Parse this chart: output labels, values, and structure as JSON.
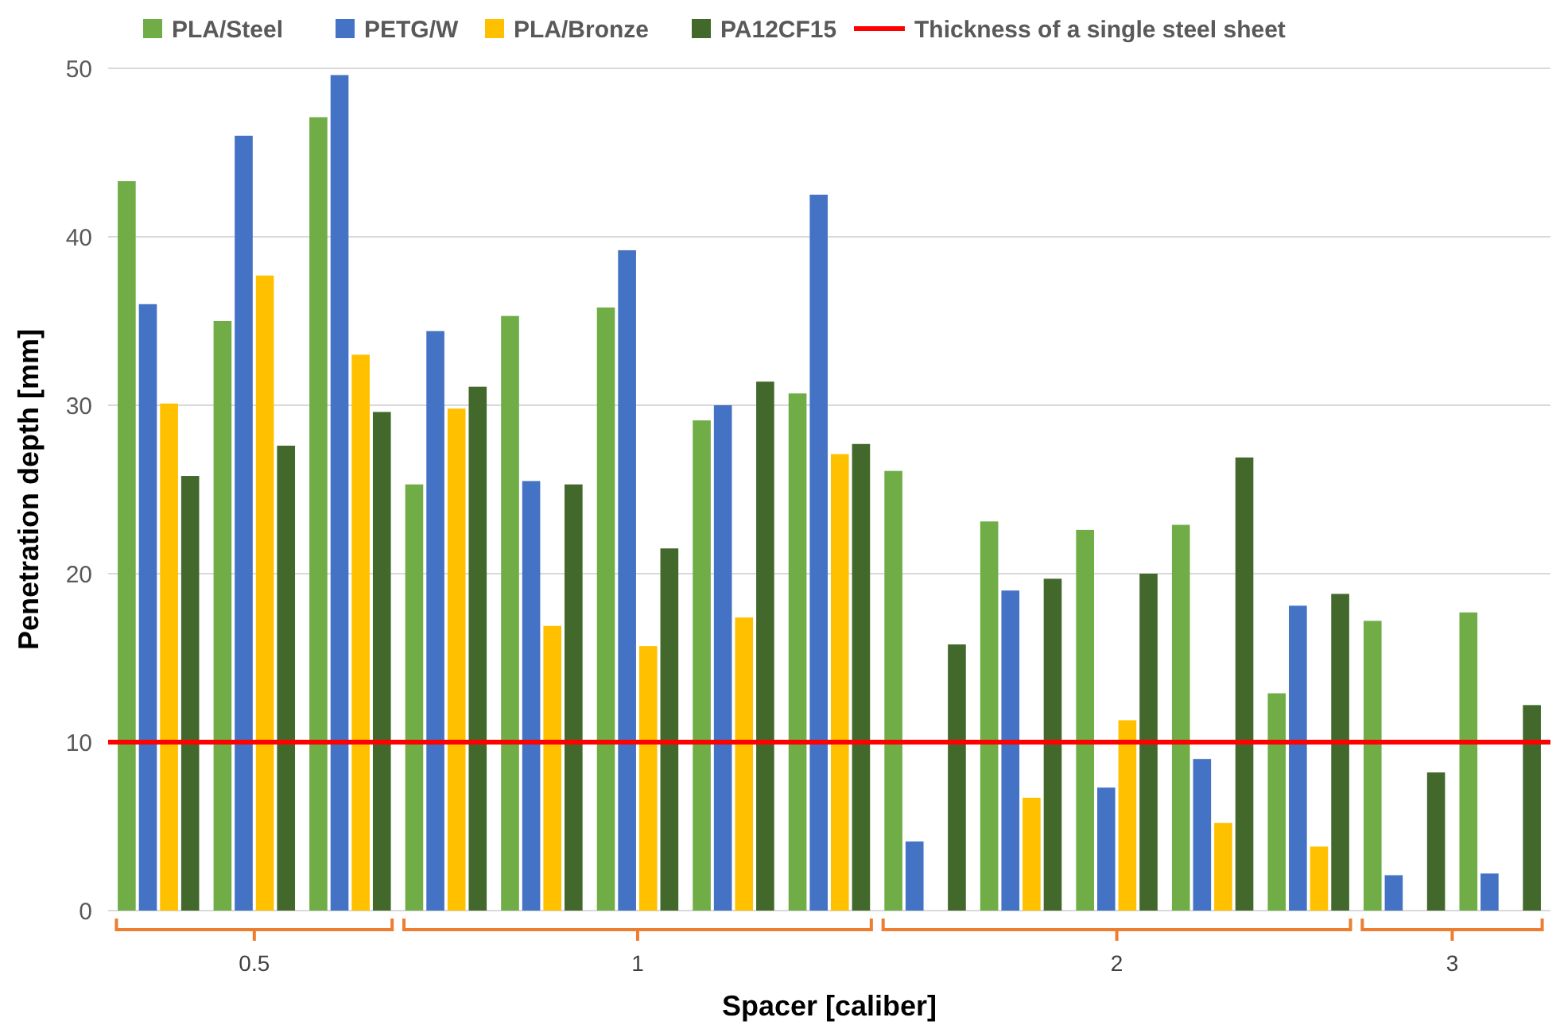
{
  "chart_data": {
    "type": "bar",
    "xlabel": "Spacer [caliber]",
    "ylabel": "Penetration depth [mm]",
    "categories": [
      null,
      null,
      null,
      null,
      null,
      null,
      null,
      null,
      null,
      null,
      null,
      null,
      null,
      null,
      null
    ],
    "annotations": [
      "0.5",
      "1",
      "2",
      "3"
    ],
    "series": [
      {
        "name": "PLA/Steel",
        "color": "#70ad47",
        "values": [
          43.3,
          35,
          47.1,
          25.3,
          35.3,
          35.8,
          29.1,
          30.7,
          26.1,
          23.1,
          22.6,
          22.9,
          12.9,
          17.2,
          17.7
        ]
      },
      {
        "name": "PETG/W",
        "color": "#4472c4",
        "values": [
          36,
          46,
          49.6,
          34.4,
          25.5,
          39.2,
          30,
          42.5,
          4.1,
          19,
          7.3,
          9,
          18.1,
          2.1,
          2.2
        ]
      },
      {
        "name": "PLA/Bronze",
        "color": "#ffc000",
        "values": [
          30.1,
          37.7,
          33,
          29.8,
          16.9,
          15.7,
          17.4,
          27.1,
          null,
          6.7,
          11.3,
          5.2,
          3.8,
          null,
          null
        ]
      },
      {
        "name": "PA12CF15",
        "color": "#43682b",
        "values": [
          25.8,
          27.6,
          29.6,
          31.1,
          25.3,
          21.5,
          31.4,
          27.7,
          15.8,
          19.7,
          20,
          26.9,
          18.8,
          8.2,
          12.2
        ]
      }
    ],
    "ref_lines": [
      {
        "axis": "y",
        "value": 10,
        "label": "Thickness of a single steel sheet",
        "color": "#ff0000"
      }
    ],
    "ylim": [
      0,
      50
    ],
    "yticks": [
      0,
      10,
      20,
      30,
      40,
      50
    ],
    "grid": "y",
    "legend": "top"
  }
}
